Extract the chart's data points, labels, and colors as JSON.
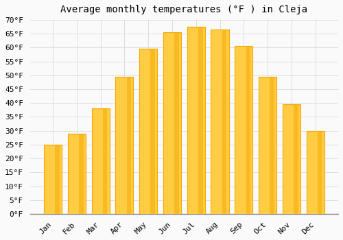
{
  "title": "Average monthly temperatures (°F ) in Cleja",
  "months": [
    "Jan",
    "Feb",
    "Mar",
    "Apr",
    "May",
    "Jun",
    "Jul",
    "Aug",
    "Sep",
    "Oct",
    "Nov",
    "Dec"
  ],
  "values": [
    25,
    29,
    38,
    49.5,
    59.5,
    65.5,
    67.5,
    66.5,
    60.5,
    49.5,
    39.5,
    30
  ],
  "bar_color_light": "#FFCC44",
  "bar_color_dark": "#F5A800",
  "background_color": "#FAFAFA",
  "grid_color": "#DDDDDD",
  "title_fontsize": 10,
  "tick_label_fontsize": 8,
  "ylim": [
    0,
    70
  ],
  "ytick_step": 5,
  "ylabel_suffix": "°F"
}
